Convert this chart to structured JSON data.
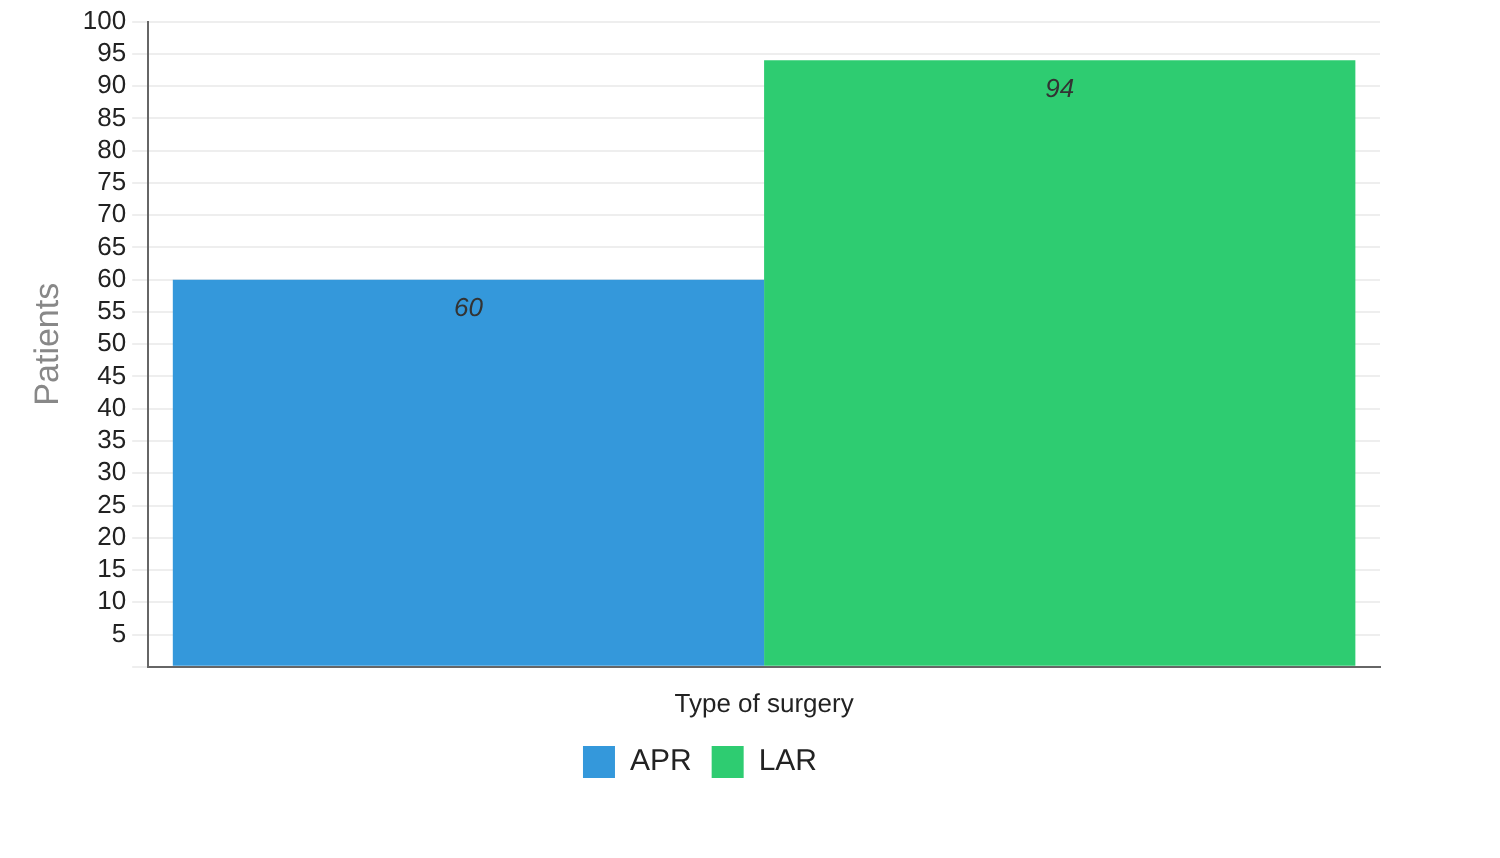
{
  "chart_data": {
    "type": "bar",
    "ylabel": "Patients",
    "categories": [
      "Type of surgery"
    ],
    "series": [
      {
        "name": "APR",
        "color": "#3498db",
        "values": [
          60
        ]
      },
      {
        "name": "LAR",
        "color": "#2ecc71",
        "values": [
          94
        ]
      }
    ],
    "ylim": [
      0,
      100
    ],
    "yticks": [
      {
        "value": 0,
        "label": null
      },
      5,
      10,
      15,
      20,
      25,
      30,
      35,
      40,
      45,
      50,
      55,
      60,
      65,
      70,
      75,
      80,
      85,
      90,
      95,
      100
    ],
    "grid": "y",
    "legend": "bottom",
    "data_labels": true
  }
}
